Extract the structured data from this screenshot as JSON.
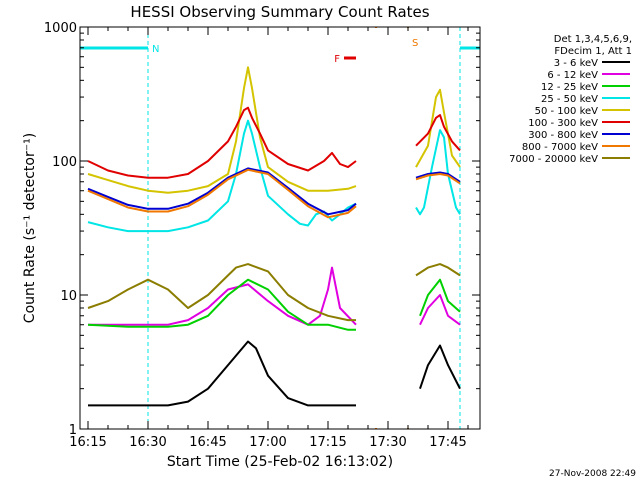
{
  "chart_data": {
    "type": "line",
    "title": "HESSI Observing Summary Count Rates",
    "xlabel": "Start Time (25-Feb-02 16:13:02)",
    "ylabel": "Count Rate (s⁻¹ detector⁻¹)",
    "yscale": "log",
    "ylim": [
      1,
      1000
    ],
    "xlim": [
      "16:13",
      "17:53"
    ],
    "grid": false,
    "x_ticks": [
      "16:15",
      "16:30",
      "16:45",
      "17:00",
      "17:15",
      "17:30",
      "17:45"
    ],
    "y_ticks": [
      "1",
      "10",
      "100",
      "1000"
    ],
    "timestamp": "27-Nov-2008 22:49",
    "legend": {
      "position": "right-outside",
      "header": [
        "Det 1,3,4,5,6,9,",
        "FDecim 1, Att 1"
      ]
    },
    "flags": [
      {
        "label": "N",
        "color": "#00e5e5",
        "intervals": [
          [
            "16:13",
            "16:30"
          ],
          [
            "17:48",
            "17:53"
          ]
        ]
      },
      {
        "label": "F",
        "color": "#e00000",
        "intervals": [
          [
            "17:19",
            "17:22"
          ]
        ]
      },
      {
        "label": "S",
        "color": "#f07800",
        "intervals": [
          [
            "17:27",
            "17:35"
          ]
        ]
      }
    ],
    "data_gaps": [
      [
        "17:22",
        "17:36"
      ]
    ],
    "series": [
      {
        "name": "3 - 6 keV",
        "color": "#000000",
        "x": [
          "16:15",
          "16:25",
          "16:35",
          "16:40",
          "16:45",
          "16:50",
          "16:55",
          "16:57",
          "17:00",
          "17:05",
          "17:10",
          "17:15",
          "17:20",
          "17:22",
          "17:38",
          "17:40",
          "17:43",
          "17:45",
          "17:48"
        ],
        "y": [
          1.5,
          1.5,
          1.5,
          1.6,
          2.0,
          3.0,
          4.5,
          4.0,
          2.5,
          1.7,
          1.5,
          1.5,
          1.5,
          1.5,
          2.0,
          3.0,
          4.2,
          3.0,
          2.0
        ]
      },
      {
        "name": "6 - 12 keV",
        "color": "#e000e0",
        "x": [
          "16:15",
          "16:25",
          "16:35",
          "16:40",
          "16:45",
          "16:50",
          "16:55",
          "17:00",
          "17:05",
          "17:10",
          "17:13",
          "17:15",
          "17:16",
          "17:18",
          "17:22",
          "17:38",
          "17:40",
          "17:43",
          "17:45",
          "17:48"
        ],
        "y": [
          6,
          6,
          6,
          6.5,
          8,
          11,
          12,
          9,
          7,
          6,
          7,
          11,
          16,
          8,
          6,
          6,
          8,
          10,
          7,
          6
        ]
      },
      {
        "name": "12 - 25 keV",
        "color": "#00d000",
        "x": [
          "16:15",
          "16:25",
          "16:35",
          "16:40",
          "16:45",
          "16:50",
          "16:55",
          "17:00",
          "17:05",
          "17:10",
          "17:15",
          "17:20",
          "17:22",
          "17:38",
          "17:40",
          "17:43",
          "17:45",
          "17:48"
        ],
        "y": [
          6,
          5.8,
          5.8,
          6,
          7,
          10,
          13,
          11,
          7.5,
          6,
          6,
          5.5,
          5.5,
          7,
          10,
          13,
          9,
          7.5
        ]
      },
      {
        "name": "25 - 50 keV",
        "color": "#00e5e5",
        "x": [
          "16:15",
          "16:20",
          "16:25",
          "16:30",
          "16:35",
          "16:40",
          "16:45",
          "16:50",
          "16:52",
          "16:54",
          "16:55",
          "16:56",
          "16:58",
          "17:00",
          "17:05",
          "17:08",
          "17:10",
          "17:12",
          "17:14",
          "17:16",
          "17:18",
          "17:20",
          "17:22",
          "17:37",
          "17:38",
          "17:39",
          "17:41",
          "17:43",
          "17:44",
          "17:45",
          "17:47",
          "17:48"
        ],
        "y": [
          35,
          32,
          30,
          30,
          30,
          32,
          36,
          50,
          80,
          160,
          200,
          160,
          90,
          55,
          40,
          34,
          33,
          40,
          42,
          36,
          40,
          45,
          48,
          45,
          40,
          45,
          90,
          170,
          150,
          80,
          45,
          40
        ]
      },
      {
        "name": "50 - 100 keV",
        "color": "#d4c400",
        "x": [
          "16:15",
          "16:20",
          "16:25",
          "16:30",
          "16:35",
          "16:40",
          "16:45",
          "16:50",
          "16:52",
          "16:54",
          "16:55",
          "16:56",
          "16:58",
          "17:00",
          "17:05",
          "17:10",
          "17:15",
          "17:20",
          "17:22",
          "17:37",
          "17:40",
          "17:42",
          "17:43",
          "17:44",
          "17:46",
          "17:48"
        ],
        "y": [
          80,
          72,
          65,
          60,
          58,
          60,
          65,
          80,
          140,
          350,
          500,
          350,
          150,
          90,
          70,
          60,
          60,
          62,
          65,
          90,
          130,
          300,
          340,
          230,
          110,
          90
        ]
      },
      {
        "name": "100 - 300 keV",
        "color": "#e00000",
        "x": [
          "16:15",
          "16:20",
          "16:25",
          "16:30",
          "16:35",
          "16:40",
          "16:45",
          "16:50",
          "16:52",
          "16:54",
          "16:55",
          "16:56",
          "16:58",
          "17:00",
          "17:05",
          "17:10",
          "17:14",
          "17:16",
          "17:18",
          "17:20",
          "17:22",
          "17:37",
          "17:40",
          "17:42",
          "17:43",
          "17:44",
          "17:46",
          "17:48"
        ],
        "y": [
          100,
          85,
          78,
          75,
          75,
          80,
          100,
          140,
          180,
          240,
          250,
          210,
          160,
          120,
          95,
          85,
          100,
          115,
          95,
          90,
          100,
          130,
          160,
          210,
          220,
          180,
          140,
          120
        ]
      },
      {
        "name": "300 - 800 keV",
        "color": "#0000d0",
        "x": [
          "16:15",
          "16:20",
          "16:25",
          "16:30",
          "16:35",
          "16:40",
          "16:45",
          "16:50",
          "16:55",
          "17:00",
          "17:05",
          "17:10",
          "17:15",
          "17:20",
          "17:22",
          "17:37",
          "17:40",
          "17:43",
          "17:45",
          "17:48"
        ],
        "y": [
          62,
          54,
          47,
          44,
          44,
          48,
          58,
          75,
          88,
          82,
          63,
          48,
          40,
          43,
          48,
          75,
          80,
          82,
          80,
          70
        ]
      },
      {
        "name": "800 - 7000 keV",
        "color": "#f07800",
        "x": [
          "16:15",
          "16:20",
          "16:25",
          "16:30",
          "16:35",
          "16:40",
          "16:45",
          "16:50",
          "16:55",
          "17:00",
          "17:05",
          "17:10",
          "17:15",
          "17:20",
          "17:22",
          "17:37",
          "17:40",
          "17:43",
          "17:45",
          "17:48"
        ],
        "y": [
          60,
          52,
          45,
          42,
          42,
          46,
          56,
          73,
          86,
          80,
          61,
          46,
          38,
          41,
          46,
          73,
          78,
          80,
          78,
          68
        ]
      },
      {
        "name": "7000 - 20000 keV",
        "color": "#8b7d00",
        "x": [
          "16:15",
          "16:20",
          "16:25",
          "16:30",
          "16:35",
          "16:40",
          "16:45",
          "16:50",
          "16:52",
          "16:55",
          "17:00",
          "17:05",
          "17:10",
          "17:15",
          "17:20",
          "17:22",
          "17:37",
          "17:40",
          "17:43",
          "17:45",
          "17:48"
        ],
        "y": [
          8,
          9,
          11,
          13,
          11,
          8,
          10,
          14,
          16,
          17,
          15,
          10,
          8,
          7,
          6.5,
          6.5,
          14,
          16,
          17,
          16,
          14
        ]
      }
    ]
  }
}
